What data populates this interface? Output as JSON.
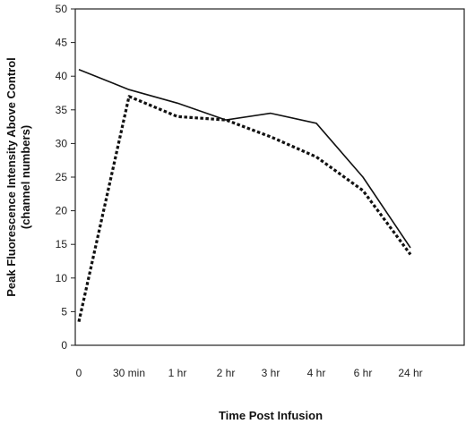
{
  "chart_data": {
    "type": "line",
    "title": "",
    "xlabel": "Time Post Infusion",
    "ylabel": "Peak Fluorescence Intensity Above Control (channel numbers)",
    "ylabel_lines": [
      "Peak Fluorescence Intensity Above Control",
      "(channel numbers)"
    ],
    "categories": [
      "0",
      "30 min",
      "1 hr",
      "2 hr",
      "3 hr",
      "4 hr",
      "6 hr",
      "24 hr"
    ],
    "ylim": [
      0,
      50
    ],
    "yticks": [
      "0",
      "5",
      "10",
      "15",
      "20",
      "25",
      "30",
      "35",
      "40",
      "45",
      "50"
    ],
    "grid": false,
    "legend": "none",
    "series": [
      {
        "style": "solid",
        "color": "#111111",
        "values": [
          41,
          38,
          36,
          33.5,
          34.5,
          33,
          25,
          14.5
        ]
      },
      {
        "style": "dotted",
        "color": "#111111",
        "values": [
          3.5,
          37,
          34,
          33.5,
          31,
          28,
          23,
          13.5
        ]
      }
    ]
  }
}
